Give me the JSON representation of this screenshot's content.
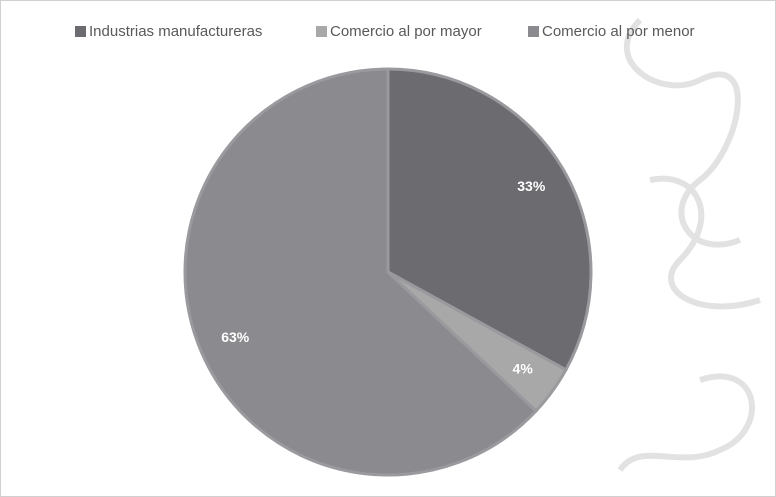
{
  "chart_data": {
    "type": "pie",
    "categories": [
      "Industrias manufactureras",
      "Comercio al por mayor",
      "Comercio al por menor"
    ],
    "values": [
      33,
      4,
      63
    ],
    "value_labels": [
      "33%",
      "4%",
      "63%"
    ],
    "colors": [
      "#6b6b70",
      "#a8a8a8",
      "#8b8b8f"
    ],
    "legend": "top"
  }
}
